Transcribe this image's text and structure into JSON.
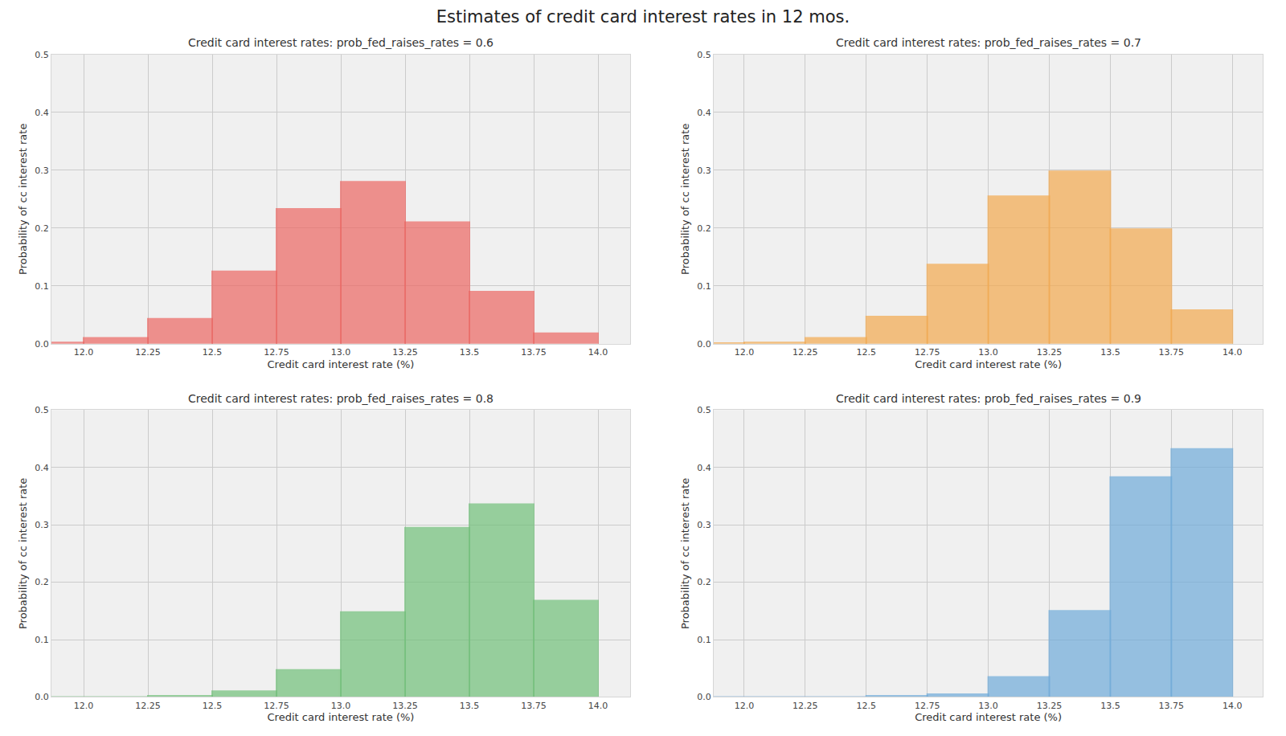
{
  "suptitle": "Estimates of credit card interest rates in 12 mos.",
  "chart_data": [
    {
      "type": "histogram",
      "title": "Credit card interest rates: prob_fed_raises_rates = 0.6",
      "x_label": "Credit card interest rate (%)",
      "y_label": "Probability of cc interest rate",
      "bins": [
        11.75,
        12.0,
        12.25,
        12.5,
        12.75,
        13.0,
        13.25,
        13.5,
        13.75,
        14.0
      ],
      "values": [
        0.002,
        0.01,
        0.043,
        0.125,
        0.233,
        0.28,
        0.21,
        0.09,
        0.018
      ],
      "color": "#ec6662",
      "xlim": [
        11.875,
        14.125
      ],
      "xticks": [
        {
          "value": 12.0,
          "label": "12.0"
        },
        12.25,
        12.5,
        12.75,
        {
          "value": 13.0,
          "label": "13.0"
        },
        13.25,
        13.5,
        13.75,
        {
          "value": 14.0,
          "label": "14.0"
        }
      ],
      "ylim": [
        0,
        0.5
      ],
      "yticks": [
        {
          "value": 0,
          "label": "0.0"
        },
        0.1,
        0.2,
        0.3,
        0.4,
        0.5
      ],
      "grid": true
    },
    {
      "type": "histogram",
      "title": "Credit card interest rates: prob_fed_raises_rates = 0.7",
      "x_label": "Credit card interest rate (%)",
      "y_label": "Probability of cc interest rate",
      "bins": [
        11.75,
        12.0,
        12.25,
        12.5,
        12.75,
        13.0,
        13.25,
        13.5,
        13.75,
        14.0
      ],
      "values": [
        0.001,
        0.002,
        0.01,
        0.047,
        0.137,
        0.255,
        0.298,
        0.198,
        0.058
      ],
      "color": "#f2a84e",
      "xlim": [
        11.875,
        14.125
      ],
      "xticks": [
        {
          "value": 12.0,
          "label": "12.0"
        },
        12.25,
        12.5,
        12.75,
        {
          "value": 13.0,
          "label": "13.0"
        },
        13.25,
        13.5,
        13.75,
        {
          "value": 14.0,
          "label": "14.0"
        }
      ],
      "ylim": [
        0,
        0.5
      ],
      "yticks": [
        {
          "value": 0,
          "label": "0.0"
        },
        0.1,
        0.2,
        0.3,
        0.4,
        0.5
      ],
      "grid": true
    },
    {
      "type": "histogram",
      "title": "Credit card interest rates: prob_fed_raises_rates = 0.8",
      "x_label": "Credit card interest rate (%)",
      "y_label": "Probability of cc interest rate",
      "bins": [
        11.75,
        12.0,
        12.25,
        12.5,
        12.75,
        13.0,
        13.25,
        13.5,
        13.75,
        14.0
      ],
      "values": [
        0,
        0,
        0.002,
        0.01,
        0.047,
        0.148,
        0.295,
        0.336,
        0.168
      ],
      "color": "#6fbf78",
      "xlim": [
        11.875,
        14.125
      ],
      "xticks": [
        {
          "value": 12.0,
          "label": "12.0"
        },
        12.25,
        12.5,
        12.75,
        {
          "value": 13.0,
          "label": "13.0"
        },
        13.25,
        13.5,
        13.75,
        {
          "value": 14.0,
          "label": "14.0"
        }
      ],
      "ylim": [
        0,
        0.5
      ],
      "yticks": [
        {
          "value": 0,
          "label": "0.0"
        },
        0.1,
        0.2,
        0.3,
        0.4,
        0.5
      ],
      "grid": true
    },
    {
      "type": "histogram",
      "title": "Credit card interest rates: prob_fed_raises_rates = 0.9",
      "x_label": "Credit card interest rate (%)",
      "y_label": "Probability of cc interest rate",
      "bins": [
        11.75,
        12.0,
        12.25,
        12.5,
        12.75,
        13.0,
        13.25,
        13.5,
        13.75,
        14.0
      ],
      "values": [
        0,
        0,
        0,
        0.002,
        0.005,
        0.035,
        0.15,
        0.383,
        0.432
      ],
      "color": "#6eaad9",
      "xlim": [
        11.875,
        14.125
      ],
      "xticks": [
        {
          "value": 12.0,
          "label": "12.0"
        },
        12.25,
        12.5,
        12.75,
        {
          "value": 13.0,
          "label": "13.0"
        },
        13.25,
        13.5,
        13.75,
        {
          "value": 14.0,
          "label": "14.0"
        }
      ],
      "ylim": [
        0,
        0.5
      ],
      "yticks": [
        {
          "value": 0,
          "label": "0.0"
        },
        0.1,
        0.2,
        0.3,
        0.4,
        0.5
      ],
      "grid": true
    }
  ]
}
